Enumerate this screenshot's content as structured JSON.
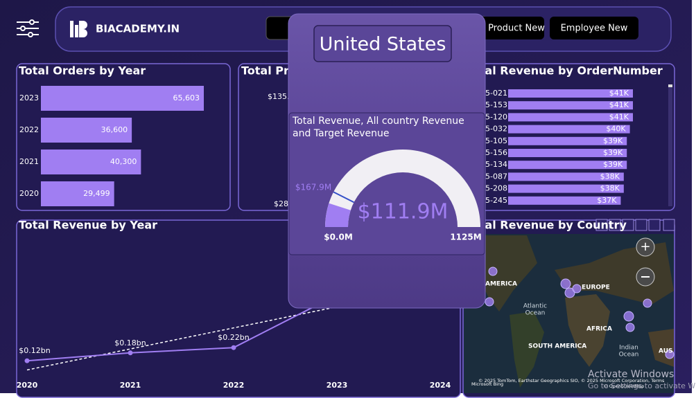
{
  "header": {
    "brand": "BIACADEMY.IN",
    "buttons": [
      "Product New",
      "Employee New"
    ]
  },
  "slicer": {
    "selected": "United States"
  },
  "chart_data": [
    {
      "type": "hbar",
      "title": "Total Orders by Year",
      "categories": [
        "2023",
        "2022",
        "2021",
        "2020"
      ],
      "values": [
        65603,
        36600,
        40300,
        29499
      ],
      "value_labels": [
        "65,603",
        "36,600",
        "40,300",
        "29,499"
      ],
      "color": "#a07ef2"
    },
    {
      "type": "partial",
      "title": "Total Pro",
      "labels": [
        "$135.0",
        "$28"
      ]
    },
    {
      "type": "hbar",
      "title": "Total Revenue by OrderNumber",
      "categories": [
        "5-021",
        "5-153",
        "5-120",
        "5-032",
        "5-105",
        "5-156",
        "5-134",
        "5-087",
        "5-208",
        "5-245"
      ],
      "values": [
        41000,
        41000,
        41000,
        40000,
        39000,
        39000,
        39000,
        38000,
        38000,
        37000
      ],
      "value_labels": [
        "$41K",
        "$41K",
        "$41K",
        "$40K",
        "$39K",
        "$39K",
        "$39K",
        "$38K",
        "$38K",
        "$37K"
      ],
      "color": "#a07ef2"
    },
    {
      "type": "line",
      "title": "Total Revenue by Year",
      "x": [
        "2020",
        "2021",
        "2022",
        "2023",
        "2024"
      ],
      "series": [
        {
          "color": "#a07ef2",
          "values": [
            0.12,
            0.18,
            0.22,
            0.62,
            null
          ],
          "value_labels": [
            "$0.12bn",
            "$0.18bn",
            "$0.22bn",
            null,
            null
          ]
        }
      ],
      "trend": {
        "color": "#ffffff",
        "values": [
          0.05,
          0.21,
          0.37,
          0.53,
          null
        ]
      }
    },
    {
      "type": "gauge",
      "title": "Total Revenue, All country Revenue and Target Revenue",
      "value": 111.9,
      "value_label": "$111.9M",
      "min": {
        "value": 0,
        "label": "$0.0M"
      },
      "max": {
        "value": 1125,
        "label": "1125M"
      },
      "target": {
        "value": 167.9,
        "label": "$167.9M"
      },
      "color": "#a07ef2",
      "track_color": "#f1eff4",
      "target_color": "#3550c8"
    },
    {
      "type": "map",
      "title": "Total Revenue by Country",
      "labels": [
        "AMERICA",
        "EUROPE",
        "AFRICA",
        "SOUTH AMERICA",
        "AUS"
      ],
      "ocean_labels": [
        [
          "Atlantic",
          "Ocean"
        ],
        [
          "Indian",
          "Ocean"
        ]
      ],
      "attribution": "© 2025 TomTom, Earthstar Geographics SIO, © 2025 Microsoft Corporation, Terms",
      "provider": "Microsoft Bing",
      "osm": "© OpenStreetMap"
    }
  ],
  "watermark": {
    "title": "Activate Windows",
    "subtitle": "Go to Settings to activate Windows."
  }
}
